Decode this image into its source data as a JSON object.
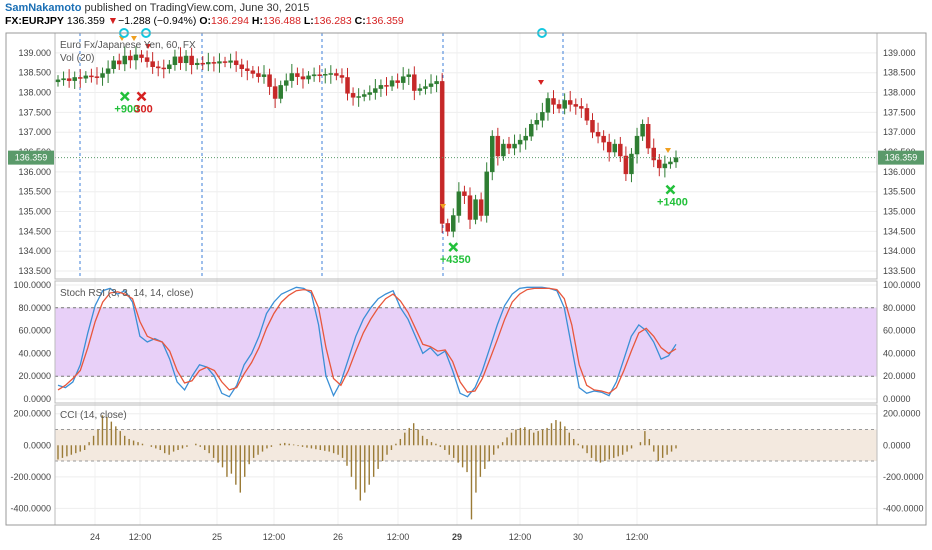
{
  "header": {
    "author": "SamNakamoto",
    "published": "published on TradingView.com, June 30, 2015",
    "symbol": "FX:EURJPY",
    "last": "136.359",
    "change_arrow": "▼",
    "change": "−1.288 (−0.94%)",
    "open_label": "O:",
    "open": "136.294",
    "high_label": "H:",
    "high": "136.488",
    "low_label": "L:",
    "low": "136.283",
    "close_label": "C:",
    "close": "136.359"
  },
  "colors": {
    "up": "#2e7d32",
    "down": "#c62828",
    "rsi_k": "#3a8fd6",
    "rsi_d": "#e8573c",
    "rsi_band": "#e8d0f8",
    "cci_bar": "#9a7a35",
    "cci_band": "#f3e9df",
    "last_price_bg": "#5a9a6a",
    "session_line": "#3d7fd9"
  },
  "chart_data": [
    {
      "type": "candlestick",
      "title": "Euro Fx/Japanese Yen, 60, FX",
      "subtitle": "Vol (20)",
      "ylim": [
        133.4,
        139.4
      ],
      "y_ticks": [
        "139.000",
        "138.500",
        "138.000",
        "137.500",
        "137.000",
        "136.500",
        "136.000",
        "135.500",
        "135.000",
        "134.500",
        "134.000",
        "133.500"
      ],
      "last_price_label": "136.359",
      "last_price": 136.359,
      "x_ticks": [
        "24",
        "12:00",
        "25",
        "12:00",
        "26",
        "12:00",
        "29",
        "12:00",
        "30",
        "12:00"
      ],
      "closes": [
        138.32,
        138.35,
        138.3,
        138.38,
        138.36,
        138.42,
        138.4,
        138.38,
        138.48,
        138.6,
        138.8,
        138.72,
        138.92,
        138.82,
        138.95,
        138.88,
        138.78,
        138.65,
        138.62,
        138.6,
        138.7,
        138.9,
        138.75,
        138.92,
        138.7,
        138.74,
        138.72,
        138.76,
        138.74,
        138.78,
        138.76,
        138.8,
        138.7,
        138.6,
        138.55,
        138.48,
        138.4,
        138.45,
        138.15,
        137.85,
        138.18,
        138.3,
        138.48,
        138.4,
        138.34,
        138.42,
        138.45,
        138.44,
        138.46,
        138.48,
        138.43,
        138.38,
        137.98,
        137.88,
        137.9,
        137.95,
        138.0,
        138.1,
        138.18,
        138.16,
        138.3,
        138.25,
        138.4,
        138.45,
        138.05,
        138.1,
        138.15,
        138.22,
        138.28,
        134.7,
        134.5,
        134.9,
        135.5,
        135.4,
        134.8,
        135.3,
        134.9,
        136.0,
        136.9,
        136.4,
        136.7,
        136.6,
        136.7,
        136.8,
        136.9,
        137.2,
        137.3,
        137.5,
        137.85,
        137.7,
        137.6,
        137.8,
        137.7,
        137.65,
        137.6,
        137.3,
        137.0,
        136.9,
        136.75,
        136.5,
        136.7,
        136.4,
        135.95,
        136.45,
        136.9,
        137.2,
        136.6,
        136.3,
        136.1,
        136.2,
        136.25,
        136.359
      ],
      "markers": [
        {
          "label": "+900",
          "x_index": 12,
          "y": 137.65,
          "color": "#22c03a"
        },
        {
          "label": "300",
          "x_index": 15,
          "y": 137.65,
          "color": "#d52121"
        },
        {
          "label": "+4350",
          "x_index": 71,
          "y": 133.85,
          "color": "#22c03a"
        },
        {
          "label": "+1400",
          "x_index": 110,
          "y": 135.3,
          "color": "#22c03a"
        }
      ]
    },
    {
      "type": "line",
      "title": "Stoch RSI (3, 3, 14, 14, close)",
      "ylim": [
        0,
        100
      ],
      "y_ticks": [
        "100.0000",
        "80.0000",
        "60.0000",
        "40.0000",
        "20.0000",
        "0.0000"
      ],
      "band": [
        20,
        80
      ],
      "series": [
        {
          "values": [
            12,
            10,
            15,
            30,
            58,
            82,
            95,
            97,
            92,
            95,
            85,
            55,
            50,
            53,
            50,
            35,
            15,
            8,
            20,
            30,
            28,
            20,
            5,
            2,
            12,
            30,
            40,
            55,
            75,
            85,
            92,
            95,
            98,
            97,
            93,
            65,
            20,
            3,
            15,
            35,
            55,
            70,
            80,
            88,
            92,
            95,
            80,
            70,
            55,
            40,
            45,
            38,
            42,
            25,
            5,
            2,
            10,
            25,
            45,
            65,
            82,
            92,
            97,
            98,
            98,
            98,
            97,
            95,
            80,
            45,
            10,
            5,
            7,
            6,
            3,
            15,
            35,
            55,
            65,
            60,
            50,
            35,
            38,
            48
          ]
        },
        {
          "values": [
            8,
            12,
            18,
            25,
            45,
            68,
            85,
            93,
            94,
            92,
            88,
            68,
            55,
            52,
            50,
            42,
            25,
            14,
            16,
            25,
            28,
            25,
            15,
            8,
            10,
            22,
            32,
            45,
            62,
            75,
            85,
            91,
            95,
            96,
            95,
            80,
            45,
            18,
            12,
            25,
            42,
            58,
            70,
            80,
            88,
            92,
            86,
            76,
            62,
            48,
            46,
            42,
            43,
            33,
            15,
            6,
            7,
            18,
            35,
            52,
            70,
            85,
            92,
            96,
            97,
            97,
            97,
            96,
            88,
            65,
            30,
            12,
            8,
            7,
            5,
            10,
            25,
            42,
            58,
            62,
            55,
            45,
            40,
            44
          ]
        }
      ]
    },
    {
      "type": "bar",
      "title": "CCI (14, close)",
      "ylim": [
        -480,
        230
      ],
      "y_ticks": [
        "200.0000",
        "0.0000",
        "-200.0000",
        "-400.0000"
      ],
      "band": [
        -100,
        100
      ],
      "values": [
        -90,
        -80,
        -70,
        -60,
        -50,
        -40,
        -30,
        20,
        60,
        100,
        190,
        180,
        150,
        120,
        90,
        60,
        40,
        30,
        20,
        10,
        0,
        -10,
        -20,
        -30,
        -50,
        -60,
        -40,
        -30,
        -20,
        -10,
        0,
        10,
        -10,
        -30,
        -50,
        -80,
        -110,
        -140,
        -200,
        -180,
        -250,
        -300,
        -200,
        -120,
        -80,
        -60,
        -40,
        -20,
        -10,
        0,
        10,
        15,
        10,
        5,
        -5,
        -10,
        -15,
        -20,
        -25,
        -30,
        -35,
        -40,
        -50,
        -60,
        -80,
        -130,
        -200,
        -280,
        -350,
        -300,
        -250,
        -200,
        -150,
        -100,
        -60,
        -30,
        10,
        40,
        80,
        110,
        140,
        100,
        60,
        40,
        20,
        10,
        -10,
        -30,
        -60,
        -80,
        -110,
        -140,
        -170,
        -470,
        -300,
        -200,
        -150,
        -100,
        -60,
        -20,
        20,
        50,
        80,
        100,
        110,
        115,
        100,
        80,
        90,
        100,
        110,
        140,
        160,
        150,
        120,
        80,
        40,
        10,
        -20,
        -50,
        -80,
        -100,
        -110,
        -100,
        -90,
        -80,
        -70,
        -60,
        -40,
        -20,
        0,
        20,
        90,
        40,
        -40,
        -100,
        -80,
        -60,
        -40,
        -20
      ]
    }
  ]
}
